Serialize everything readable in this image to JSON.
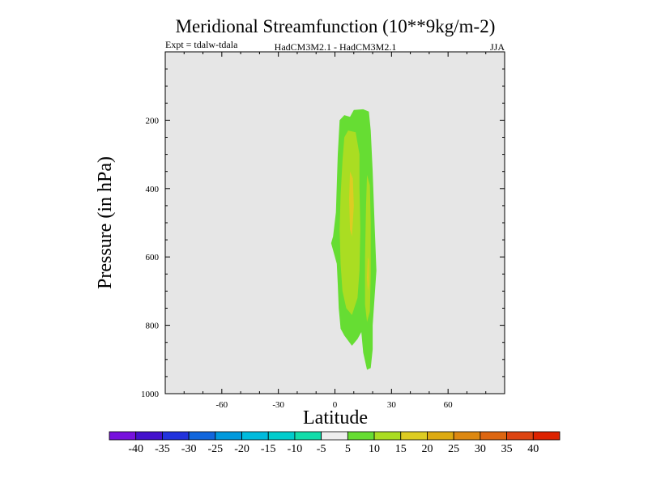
{
  "chart_data": {
    "type": "contour",
    "title": "Meridional Streamfunction (10**9kg/m-2)",
    "subtitle_left": "Expt = tdalw-tdala",
    "subtitle_center": "HadCM3M2.1 - HadCM3M2.1",
    "subtitle_right": "JJA",
    "xlabel": "Latitude",
    "ylabel": "Pressure (in hPa)",
    "xlim": [
      -90,
      90
    ],
    "ylim": [
      1000,
      0
    ],
    "x_ticks": [
      -60,
      -30,
      0,
      30,
      60
    ],
    "y_ticks": [
      200,
      400,
      600,
      800,
      1000
    ],
    "background_color": "#e6e6e6",
    "levels": [
      {
        "label": "5 to 10",
        "color": "#66dd33",
        "outline": [
          [
            10,
            170
          ],
          [
            15,
            168
          ],
          [
            18,
            175
          ],
          [
            19,
            230
          ],
          [
            20,
            350
          ],
          [
            21,
            500
          ],
          [
            22,
            640
          ],
          [
            21,
            720
          ],
          [
            20,
            800
          ],
          [
            20,
            870
          ],
          [
            19,
            925
          ],
          [
            17,
            930
          ],
          [
            15,
            880
          ],
          [
            14,
            820
          ],
          [
            12,
            840
          ],
          [
            9,
            860
          ],
          [
            5,
            830
          ],
          [
            3,
            810
          ],
          [
            2,
            750
          ],
          [
            1.5,
            680
          ],
          [
            1,
            620
          ],
          [
            -2,
            560
          ],
          [
            -1,
            540
          ],
          [
            0.5,
            470
          ],
          [
            1.5,
            300
          ],
          [
            2.5,
            200
          ],
          [
            5,
            185
          ],
          [
            8,
            190
          ]
        ]
      },
      {
        "label": "10 to 15",
        "color": "#aadd22",
        "outline": [
          [
            7,
            230
          ],
          [
            11,
            235
          ],
          [
            13,
            300
          ],
          [
            13,
            400
          ],
          [
            13.5,
            520
          ],
          [
            13,
            640
          ],
          [
            12,
            720
          ],
          [
            9,
            770
          ],
          [
            6,
            750
          ],
          [
            4,
            700
          ],
          [
            3,
            620
          ],
          [
            2.5,
            520
          ],
          [
            3,
            420
          ],
          [
            4,
            320
          ],
          [
            5,
            250
          ]
        ]
      },
      {
        "label": "10 to 15",
        "color": "#aadd22",
        "outline": [
          [
            17,
            360
          ],
          [
            18.5,
            390
          ],
          [
            19,
            500
          ],
          [
            19,
            650
          ],
          [
            18.5,
            760
          ],
          [
            17,
            790
          ],
          [
            16,
            740
          ],
          [
            16,
            600
          ],
          [
            16.5,
            450
          ]
        ]
      },
      {
        "label": "15 to 20",
        "color": "#ddcc22",
        "outline": [
          [
            8,
            350
          ],
          [
            9.5,
            370
          ],
          [
            10,
            450
          ],
          [
            9,
            540
          ],
          [
            8,
            520
          ],
          [
            7.5,
            430
          ]
        ]
      },
      {
        "label": "15 to 20",
        "color": "#ddcc22",
        "outline": [
          [
            17.5,
            600
          ],
          [
            18,
            610
          ],
          [
            18,
            680
          ],
          [
            17.5,
            700
          ],
          [
            17,
            660
          ]
        ]
      }
    ],
    "colorbar": {
      "colors": [
        "#7711dd",
        "#4411cc",
        "#2233dd",
        "#1166dd",
        "#0099dd",
        "#00bbdd",
        "#00cccc",
        "#11ddaa",
        "#eeeeee",
        "#66dd33",
        "#aadd22",
        "#ddcc22",
        "#ddaa11",
        "#dd8811",
        "#dd6611",
        "#dd4411",
        "#dd2200"
      ],
      "labels": [
        "-40",
        "-35",
        "-30",
        "-25",
        "-20",
        "-15",
        "-10",
        "-5",
        "5",
        "10",
        "15",
        "20",
        "25",
        "30",
        "35",
        "40"
      ]
    }
  }
}
